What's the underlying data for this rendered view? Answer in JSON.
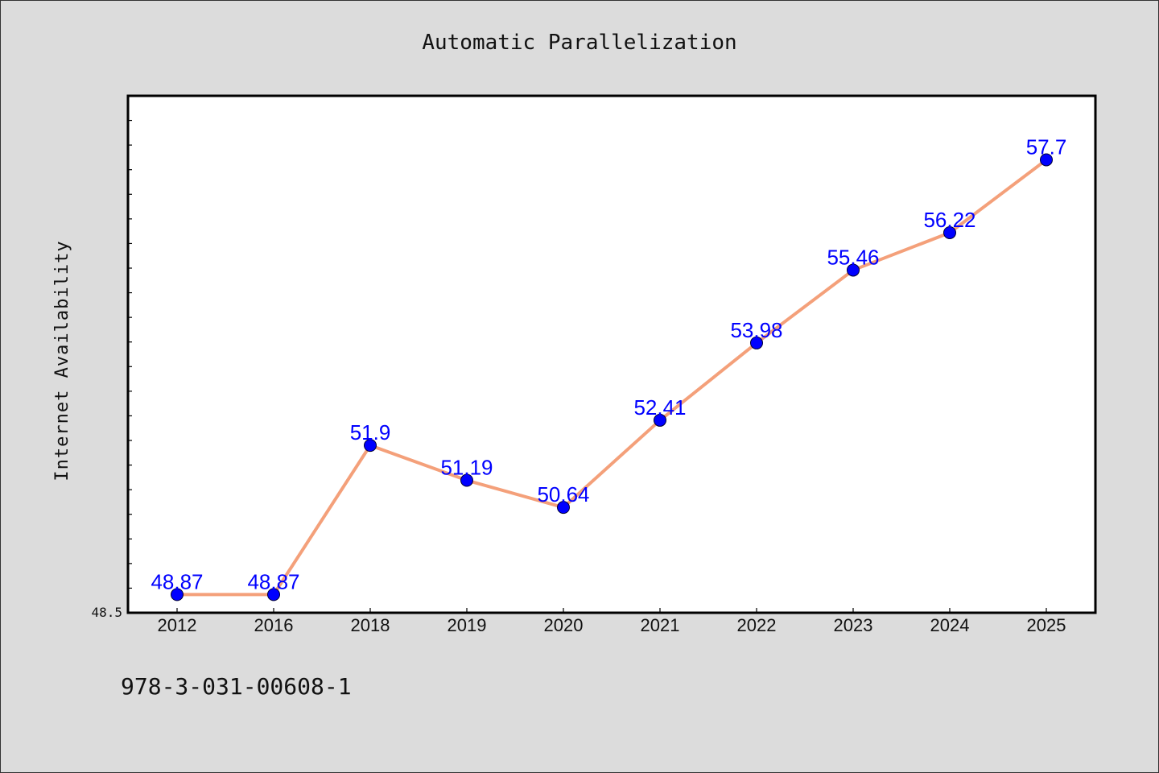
{
  "chart_data": {
    "type": "line",
    "title": "Automatic Parallelization",
    "xlabel": "",
    "ylabel": "Internet Availability",
    "categories": [
      "2012",
      "2016",
      "2018",
      "2019",
      "2020",
      "2021",
      "2022",
      "2023",
      "2024",
      "2025"
    ],
    "series": [
      {
        "values": [
          48.87,
          48.87,
          51.9,
          51.19,
          50.64,
          52.41,
          53.98,
          55.46,
          56.22,
          57.7
        ],
        "labels": [
          "48.87",
          "48.87",
          "51.9",
          "51.19",
          "50.64",
          "52.41",
          "53.98",
          "55.46",
          "56.22",
          "57.7"
        ]
      }
    ],
    "ylim": [
      48.5,
      59.0
    ],
    "yticks_labeled": [
      "48.5"
    ],
    "grid": false,
    "legend": "none"
  },
  "footer": {
    "text": "978-3-031-00608-1"
  },
  "colors": {
    "line": "#f4a07a",
    "marker": "#0000ff",
    "label": "#0000ff",
    "background": "#dcdcdc",
    "plot": "#ffffff"
  }
}
